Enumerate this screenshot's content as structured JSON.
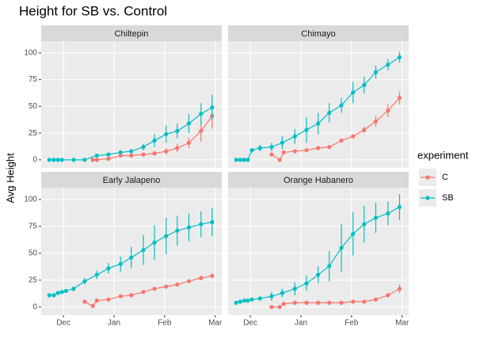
{
  "chart_data": {
    "type": "line",
    "title": "Height for SB vs. Control",
    "y_label": "Avg Height",
    "legend_title": "experiment",
    "xlim": [
      11.56,
      15.13
    ],
    "xticks": [
      {
        "value": 12,
        "label": "Dec"
      },
      {
        "value": 13,
        "label": "Jan"
      },
      {
        "value": 14,
        "label": "Feb"
      },
      {
        "value": 15,
        "label": "Mar"
      }
    ],
    "ylim": [
      -7.5,
      111
    ],
    "yticks": [
      0,
      25,
      50,
      75,
      100
    ],
    "grid": true,
    "panels": [
      {
        "title": "Chiltepin",
        "series": [
          {
            "name": "C",
            "color": "#F8766D",
            "x": [
              12.58,
              12.66,
              12.89,
              13.13,
              13.34,
              13.58,
              13.8,
              14.03,
              14.25,
              14.48,
              14.72,
              14.94
            ],
            "values": [
              0,
              0,
              1,
              4,
              4,
              5,
              6,
              8,
              11,
              16,
              27,
              41
            ],
            "errors": [
              0.5,
              0.5,
              1,
              1,
              1,
              1,
              2,
              3,
              4,
              5,
              10,
              12
            ]
          },
          {
            "name": "SB",
            "color": "#00BFC4",
            "x": [
              11.72,
              11.81,
              11.89,
              11.97,
              12.2,
              12.42,
              12.66,
              12.89,
              13.13,
              13.34,
              13.58,
              13.8,
              14.03,
              14.25,
              14.48,
              14.72,
              14.94
            ],
            "values": [
              0,
              0,
              0,
              0,
              0,
              0,
              4,
              5,
              7,
              8,
              12,
              18,
              24,
              27,
              34,
              43,
              49
            ],
            "errors": [
              0.5,
              0.5,
              0.5,
              0.5,
              0.5,
              0.5,
              1,
              1,
              1,
              2,
              3,
              6,
              8,
              7,
              9,
              10,
              12
            ]
          }
        ]
      },
      {
        "title": "Chimayo",
        "series": [
          {
            "name": "C",
            "color": "#F8766D",
            "x": [
              12.42,
              12.58,
              12.66,
              12.88,
              13.11,
              13.34,
              13.56,
              13.8,
              14.03,
              14.25,
              14.48,
              14.72,
              14.95
            ],
            "values": [
              5,
              0,
              7,
              8,
              9,
              11,
              12,
              18,
              22,
              28,
              36,
              46,
              58
            ],
            "errors": [
              1,
              1,
              2,
              1,
              1,
              1,
              1,
              2,
              2,
              3,
              5,
              6,
              6
            ]
          },
          {
            "name": "SB",
            "color": "#00BFC4",
            "x": [
              11.72,
              11.8,
              11.88,
              11.95,
              12.03,
              12.19,
              12.42,
              12.63,
              12.88,
              13.11,
              13.34,
              13.56,
              13.8,
              14.03,
              14.25,
              14.48,
              14.72,
              14.95
            ],
            "values": [
              0,
              0,
              0,
              0,
              9,
              11,
              12,
              16,
              22,
              28,
              34,
              44,
              51,
              63,
              70,
              82,
              89,
              96
            ],
            "errors": [
              0.5,
              0.5,
              0.5,
              0.5,
              2,
              3,
              4,
              6,
              7,
              12,
              10,
              9,
              7,
              10,
              8,
              6,
              5,
              5
            ]
          }
        ]
      },
      {
        "title": "Early Jalapeno",
        "series": [
          {
            "name": "C",
            "color": "#F8766D",
            "x": [
              12.42,
              12.58,
              12.66,
              12.89,
              13.13,
              13.34,
              13.58,
              13.8,
              14.03,
              14.25,
              14.48,
              14.72,
              14.94
            ],
            "values": [
              5,
              1,
              6,
              7,
              10,
              11,
              14,
              17,
              19,
              21,
              24,
              27,
              29
            ],
            "errors": [
              1,
              1,
              2,
              1,
              1,
              1,
              1,
              1,
              1,
              1,
              1,
              2,
              2
            ]
          },
          {
            "name": "SB",
            "color": "#00BFC4",
            "x": [
              11.72,
              11.81,
              11.89,
              11.97,
              12.05,
              12.2,
              12.42,
              12.66,
              12.89,
              13.13,
              13.34,
              13.58,
              13.8,
              14.03,
              14.25,
              14.48,
              14.72,
              14.94
            ],
            "values": [
              11,
              11,
              13,
              14,
              15,
              17,
              24,
              30,
              36,
              40,
              46,
              53,
              60,
              66,
              71,
              74,
              77,
              79
            ],
            "errors": [
              1,
              1,
              1,
              1,
              1,
              2,
              3,
              4,
              5,
              7,
              10,
              14,
              16,
              17,
              14,
              13,
              12,
              13
            ]
          }
        ]
      },
      {
        "title": "Orange Habanero",
        "series": [
          {
            "name": "C",
            "color": "#F8766D",
            "x": [
              12.42,
              12.58,
              12.66,
              12.88,
              13.11,
              13.34,
              13.56,
              13.8,
              14.03,
              14.25,
              14.48,
              14.72,
              14.95
            ],
            "values": [
              0,
              0,
              3,
              4,
              4,
              4,
              4,
              4,
              5,
              5,
              7,
              11,
              17
            ],
            "errors": [
              0.5,
              0.5,
              1,
              1,
              1,
              1,
              1,
              1,
              1,
              1,
              1,
              2,
              4
            ]
          },
          {
            "name": "SB",
            "color": "#00BFC4",
            "x": [
              11.72,
              11.8,
              11.88,
              11.95,
              12.03,
              12.19,
              12.42,
              12.63,
              12.88,
              13.11,
              13.34,
              13.56,
              13.8,
              14.03,
              14.25,
              14.48,
              14.72,
              14.95
            ],
            "values": [
              4,
              5,
              6,
              6,
              7,
              8,
              10,
              13,
              17,
              22,
              30,
              38,
              55,
              68,
              77,
              83,
              87,
              93
            ],
            "errors": [
              1,
              1,
              1,
              1,
              1,
              2,
              4,
              4,
              6,
              7,
              8,
              14,
              22,
              20,
              17,
              14,
              11,
              12
            ]
          }
        ]
      }
    ]
  }
}
